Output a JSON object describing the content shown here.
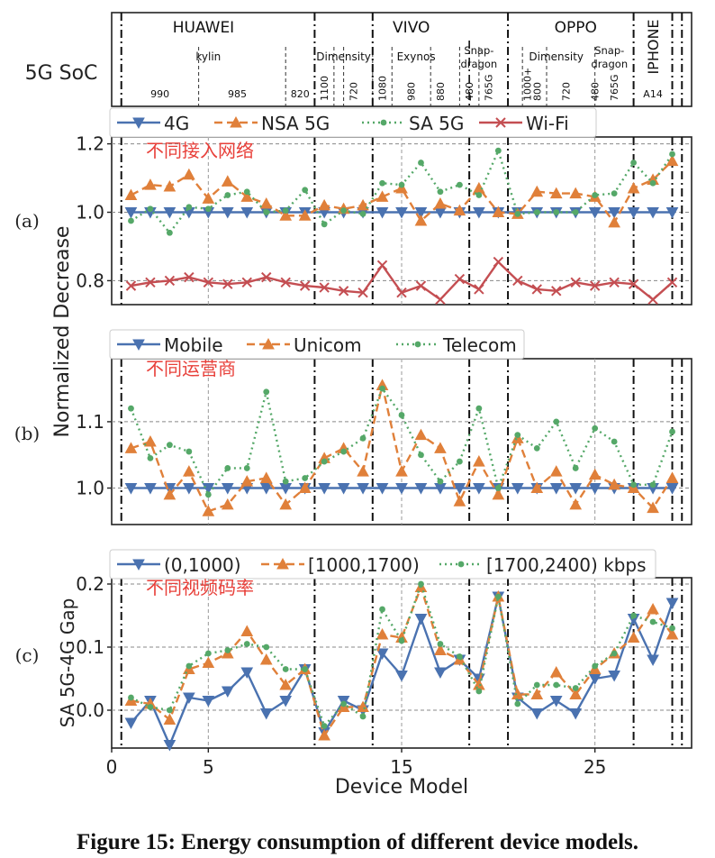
{
  "caption": "Figure 15: Energy consumption of different device models.",
  "colors": {
    "blue": "#4a72b0",
    "orange": "#e0803a",
    "green": "#55a868",
    "red": "#c44e52",
    "annot": "#e8403a"
  },
  "header": {
    "ylabel": "5G SoC",
    "vendors": [
      {
        "name": "HUAWEI",
        "x": 4.75
      },
      {
        "name": "VIVO",
        "x": 15.5
      },
      {
        "name": "OPPO",
        "x": 24.0
      },
      {
        "name": "IPHONE",
        "x": 28.0
      }
    ],
    "families": [
      {
        "name": "kylin",
        "x": 5.0
      },
      {
        "name": "Dimensity",
        "x": 12.0
      },
      {
        "name": "Exynos",
        "x": 15.75
      },
      {
        "name": "Snap-\ndragon",
        "x": 19.0
      },
      {
        "name": "Dimensity",
        "x": 23.0
      },
      {
        "name": "Snap-\ndragon",
        "x": 25.75
      }
    ],
    "models": [
      {
        "name": "990",
        "x": 2.5
      },
      {
        "name": "985",
        "x": 6.5
      },
      {
        "name": "820",
        "x": 9.75
      },
      {
        "name": "1100",
        "x": 11.0
      },
      {
        "name": "720",
        "x": 12.5
      },
      {
        "name": "1080",
        "x": 14.0
      },
      {
        "name": "980",
        "x": 15.5
      },
      {
        "name": "880",
        "x": 17.0
      },
      {
        "name": "480",
        "x": 18.5
      },
      {
        "name": "765G",
        "x": 19.5
      },
      {
        "name": "1000+",
        "x": 21.5
      },
      {
        "name": "800",
        "x": 22.0
      },
      {
        "name": "720",
        "x": 23.5
      },
      {
        "name": "480",
        "x": 25.0
      },
      {
        "name": "765G",
        "x": 26.0
      },
      {
        "name": "A14",
        "x": 28.0
      }
    ],
    "major_dividers": [
      10.5,
      20.5,
      27.0,
      29.0
    ],
    "minor_dividers": [
      4.5,
      9.0,
      11.5,
      12.0,
      13.5,
      14.5,
      16.5,
      18.0,
      19.0,
      21.25,
      22.5,
      25.0
    ]
  },
  "chart_data": [
    {
      "type": "line",
      "panel_label": "(a)",
      "annotation": "不同接入网络",
      "ylabel": "Normalized Decrease",
      "xlim": [
        0,
        30
      ],
      "ylim": [
        0.73,
        1.22
      ],
      "yticks": [
        0.8,
        1.0,
        1.2
      ],
      "ytick_labels": [
        "0.8",
        "1.0",
        "1.2"
      ],
      "x": [
        1,
        2,
        3,
        4,
        5,
        6,
        7,
        8,
        9,
        10,
        11,
        12,
        13,
        14,
        15,
        16,
        17,
        18,
        19,
        20,
        21,
        22,
        23,
        24,
        25,
        26,
        27,
        28,
        29
      ],
      "series": [
        {
          "name": "4G",
          "style": "blue",
          "values": [
            1.0,
            1.0,
            1.0,
            1.0,
            1.0,
            1.0,
            1.0,
            1.0,
            1.0,
            1.0,
            1.0,
            1.0,
            1.0,
            1.0,
            1.0,
            1.0,
            1.0,
            1.0,
            1.0,
            1.0,
            1.0,
            1.0,
            1.0,
            1.0,
            1.0,
            1.0,
            1.0,
            1.0,
            1.0
          ]
        },
        {
          "name": "NSA 5G",
          "style": "orange",
          "values": [
            1.05,
            1.08,
            1.075,
            1.11,
            1.04,
            1.09,
            1.045,
            1.025,
            0.99,
            0.99,
            1.02,
            1.01,
            1.02,
            1.045,
            1.07,
            0.975,
            1.025,
            1.005,
            1.07,
            1.0,
            0.995,
            1.06,
            1.055,
            1.055,
            1.045,
            0.97,
            1.07,
            1.095,
            1.15
          ]
        },
        {
          "name": "SA 5G",
          "style": "green",
          "values": [
            0.975,
            1.01,
            0.94,
            1.015,
            1.01,
            1.05,
            1.06,
            1.0,
            1.005,
            1.065,
            0.965,
            1.005,
            0.995,
            1.085,
            1.08,
            1.145,
            1.06,
            1.08,
            1.05,
            1.18,
            0.995,
            1.0,
            1.0,
            1.0,
            1.05,
            1.055,
            1.145,
            1.085,
            1.17
          ]
        },
        {
          "name": "Wi-Fi",
          "style": "red",
          "values": [
            0.785,
            0.795,
            0.8,
            0.81,
            0.795,
            0.79,
            0.795,
            0.81,
            0.795,
            0.785,
            0.78,
            0.77,
            0.765,
            0.845,
            0.765,
            0.785,
            0.745,
            0.805,
            0.775,
            0.855,
            0.8,
            0.775,
            0.77,
            0.795,
            0.785,
            0.795,
            0.79,
            0.745,
            0.795
          ]
        }
      ]
    },
    {
      "type": "line",
      "panel_label": "(b)",
      "annotation": "不同运营商",
      "ylabel": "Normalized Decrease",
      "xlim": [
        0,
        30
      ],
      "ylim": [
        0.945,
        1.195
      ],
      "yticks": [
        1.0,
        1.1
      ],
      "ytick_labels": [
        "1.0",
        "1.1"
      ],
      "x": [
        1,
        2,
        3,
        4,
        5,
        6,
        7,
        8,
        9,
        10,
        11,
        12,
        13,
        14,
        15,
        16,
        17,
        18,
        19,
        20,
        21,
        22,
        23,
        24,
        25,
        26,
        27,
        28,
        29
      ],
      "series": [
        {
          "name": "Mobile",
          "style": "blue",
          "values": [
            1.0,
            1.0,
            1.0,
            1.0,
            1.0,
            1.0,
            1.0,
            1.0,
            1.0,
            1.0,
            1.0,
            1.0,
            1.0,
            1.0,
            1.0,
            1.0,
            1.0,
            1.0,
            1.0,
            1.0,
            1.0,
            1.0,
            1.0,
            1.0,
            1.0,
            1.0,
            1.0,
            1.0,
            1.0
          ]
        },
        {
          "name": "Unicom",
          "style": "orange",
          "values": [
            1.06,
            1.07,
            0.99,
            1.025,
            0.965,
            0.975,
            1.01,
            1.015,
            0.975,
            1.0,
            1.045,
            1.06,
            1.025,
            1.155,
            1.025,
            1.08,
            1.06,
            0.98,
            1.04,
            0.99,
            1.075,
            1.0,
            1.025,
            0.975,
            1.02,
            1.005,
            1.0,
            0.97,
            1.015
          ]
        },
        {
          "name": "Telecom",
          "style": "green",
          "values": [
            1.12,
            1.045,
            1.065,
            1.055,
            0.99,
            1.03,
            1.03,
            1.145,
            1.01,
            1.015,
            1.04,
            1.055,
            1.075,
            1.15,
            1.11,
            1.05,
            1.01,
            1.04,
            1.12,
            1.0,
            1.08,
            1.06,
            1.1,
            1.03,
            1.09,
            1.07,
            1.005,
            1.005,
            1.085
          ]
        }
      ]
    },
    {
      "type": "line",
      "panel_label": "(c)",
      "annotation": "不同视频码率",
      "ylabel": "SA 5G-4G Gap",
      "xlabel": "Device Model",
      "xlim": [
        0,
        30
      ],
      "ylim": [
        -0.06,
        0.21
      ],
      "yticks": [
        0.0,
        0.1,
        0.2
      ],
      "ytick_labels": [
        "0.0",
        "0.1",
        "0.2"
      ],
      "xticks": [
        0,
        5,
        15,
        25
      ],
      "xtick_labels": [
        "0",
        "5",
        "15",
        "25"
      ],
      "x": [
        1,
        2,
        3,
        4,
        5,
        6,
        7,
        8,
        9,
        10,
        11,
        12,
        13,
        14,
        15,
        16,
        17,
        18,
        19,
        20,
        21,
        22,
        23,
        24,
        25,
        26,
        27,
        28,
        29
      ],
      "series": [
        {
          "name": "(0,1000)",
          "style": "blue",
          "values": [
            -0.02,
            0.015,
            -0.055,
            0.02,
            0.015,
            0.03,
            0.06,
            -0.005,
            0.015,
            0.065,
            -0.035,
            0.015,
            0.0,
            0.09,
            0.055,
            0.145,
            0.06,
            0.08,
            0.05,
            0.18,
            0.02,
            -0.005,
            0.015,
            -0.005,
            0.05,
            0.055,
            0.145,
            0.08,
            0.17
          ]
        },
        {
          "name": "[1000,1700)",
          "style": "orange",
          "values": [
            0.015,
            0.01,
            -0.015,
            0.065,
            0.075,
            0.09,
            0.125,
            0.08,
            0.04,
            0.065,
            -0.04,
            0.005,
            0.005,
            0.12,
            0.115,
            0.195,
            0.095,
            0.08,
            0.04,
            0.18,
            0.025,
            0.025,
            0.06,
            0.025,
            0.065,
            0.09,
            0.115,
            0.16,
            0.12
          ]
        },
        {
          "name": "[1700,2400) kbps",
          "style": "green",
          "values": [
            0.02,
            0.005,
            0.0,
            0.07,
            0.09,
            0.095,
            0.105,
            0.1,
            0.065,
            0.065,
            -0.025,
            0.01,
            -0.01,
            0.16,
            0.11,
            0.2,
            0.105,
            0.085,
            0.03,
            0.18,
            0.01,
            0.04,
            0.04,
            0.035,
            0.07,
            0.09,
            0.15,
            0.14,
            0.13
          ]
        }
      ]
    }
  ]
}
